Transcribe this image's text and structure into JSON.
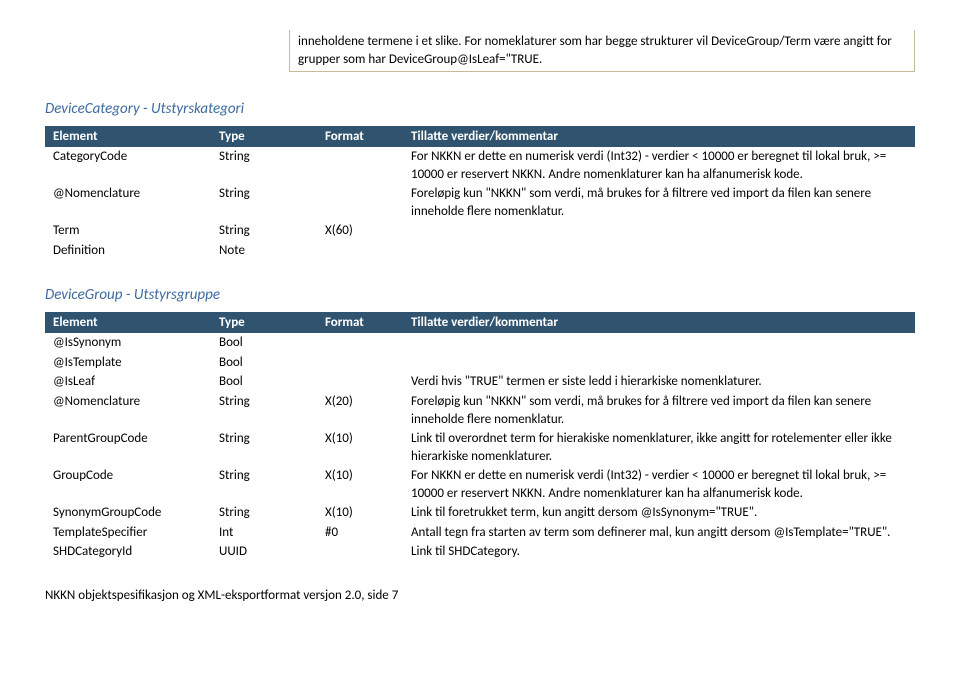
{
  "intro": "inneholdene termene i et slike. For nomeklaturer som har begge strukturer vil DeviceGroup/Term være angitt for grupper som har DeviceGroup@IsLeaf=\"TRUE.",
  "section1": {
    "title": "DeviceCategory - Utstyrskategori",
    "headers": {
      "c1": "Element",
      "c2": "Type",
      "c3": "Format",
      "c4": "Tillatte verdier/kommentar"
    },
    "rows": [
      {
        "el": "CategoryCode",
        "type": "String",
        "fmt": "",
        "comment": "For NKKN er dette en numerisk verdi (Int32) - verdier < 10000 er beregnet til lokal bruk, >= 10000 er reservert NKKN. Andre nomenklaturer kan ha alfanumerisk kode."
      },
      {
        "el": "@Nomenclature",
        "type": "String",
        "fmt": "",
        "comment": "Foreløpig kun \"NKKN\" som verdi, må brukes for å filtrere ved import da filen kan senere inneholde flere nomenklatur."
      },
      {
        "el": "Term",
        "type": "String",
        "fmt": "X(60)",
        "comment": ""
      },
      {
        "el": "Definition",
        "type": "Note",
        "fmt": "",
        "comment": ""
      }
    ]
  },
  "section2": {
    "title": "DeviceGroup - Utstyrsgruppe",
    "headers": {
      "c1": "Element",
      "c2": "Type",
      "c3": "Format",
      "c4": "Tillatte verdier/kommentar"
    },
    "rows": [
      {
        "el": "@IsSynonym",
        "type": "Bool",
        "fmt": "",
        "comment": ""
      },
      {
        "el": "@IsTemplate",
        "type": "Bool",
        "fmt": "",
        "comment": ""
      },
      {
        "el": "@IsLeaf",
        "type": "Bool",
        "fmt": "",
        "comment": "Verdi hvis \"TRUE\" termen er siste ledd i hierarkiske nomenklaturer."
      },
      {
        "el": "@Nomenclature",
        "type": "String",
        "fmt": "X(20)",
        "comment": "Foreløpig kun \"NKKN\" som verdi, må brukes for å filtrere ved import da filen kan senere inneholde flere nomenklatur."
      },
      {
        "el": "ParentGroupCode",
        "type": "String",
        "fmt": "X(10)",
        "comment": "Link til overordnet term for hierakiske nomenklaturer, ikke angitt for rotelementer eller ikke hierarkiske nomenklaturer."
      },
      {
        "el": "GroupCode",
        "type": "String",
        "fmt": "X(10)",
        "comment": "For NKKN er dette en numerisk verdi (Int32) - verdier < 10000 er beregnet til lokal bruk, >= 10000 er reservert NKKN. Andre nomenklaturer kan ha alfanumerisk kode."
      },
      {
        "el": "SynonymGroupCode",
        "type": "String",
        "fmt": "X(10)",
        "comment": "Link til foretrukket term, kun angitt dersom @IsSynonym=\"TRUE\"."
      },
      {
        "el": "TemplateSpecifier",
        "type": "Int",
        "fmt": "#0",
        "comment": "Antall tegn fra starten av term som definerer mal, kun angitt dersom @IsTemplate=\"TRUE\"."
      },
      {
        "el": "SHDCategoryId",
        "type": "UUID",
        "fmt": "",
        "comment": "Link til SHDCategory."
      }
    ]
  },
  "footer": "NKKN objektspesifikasjon og XML-eksportformat versjon 2.0, side 7"
}
